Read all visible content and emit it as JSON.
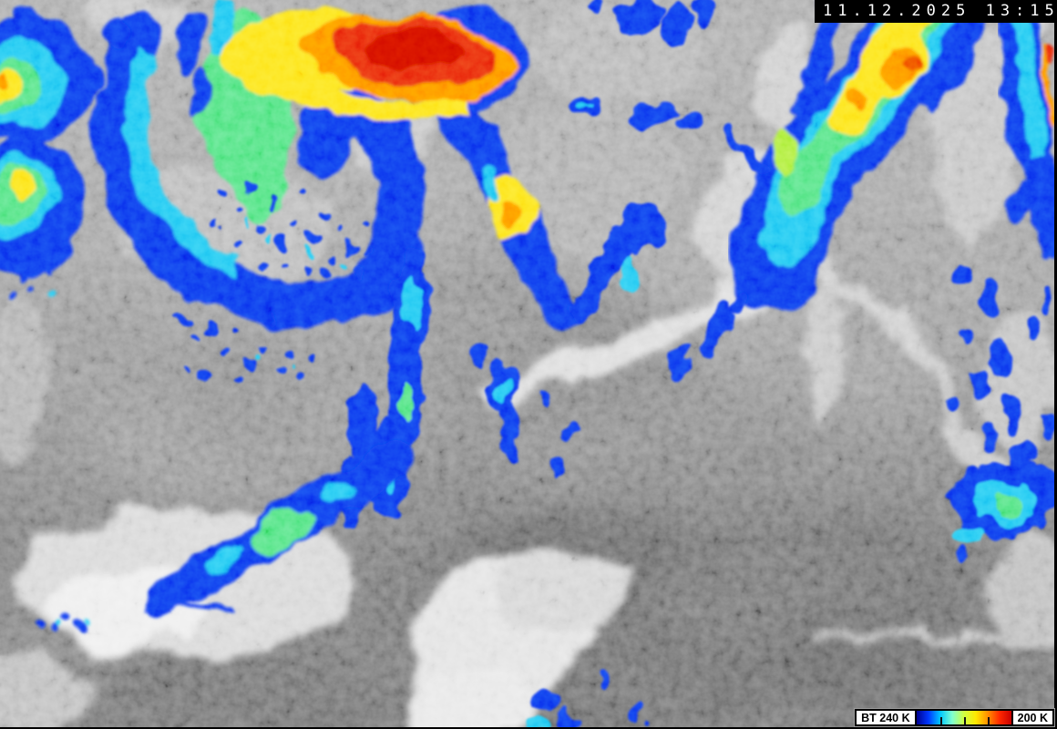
{
  "timestamp": {
    "text": "11.12.2025 13:15"
  },
  "legend": {
    "quantity_label": "BT 240 K",
    "max_label": "200 K",
    "tick_positions": [
      25,
      50,
      75
    ],
    "scale_colors": [
      "#000090",
      "#0038ff",
      "#00c8ff",
      "#80ffd0",
      "#d0ff40",
      "#ffe800",
      "#ff9000",
      "#ff2800",
      "#c80000"
    ]
  },
  "scene": {
    "base_gray": "#9a9a9a",
    "cold_cloud_palette": {
      "blue": "#0838ee",
      "cyan": "#22c9f2",
      "green": "#55e487",
      "yellow": "#fde51c",
      "orange": "#ff9800",
      "red": "#ea2c0d"
    }
  }
}
